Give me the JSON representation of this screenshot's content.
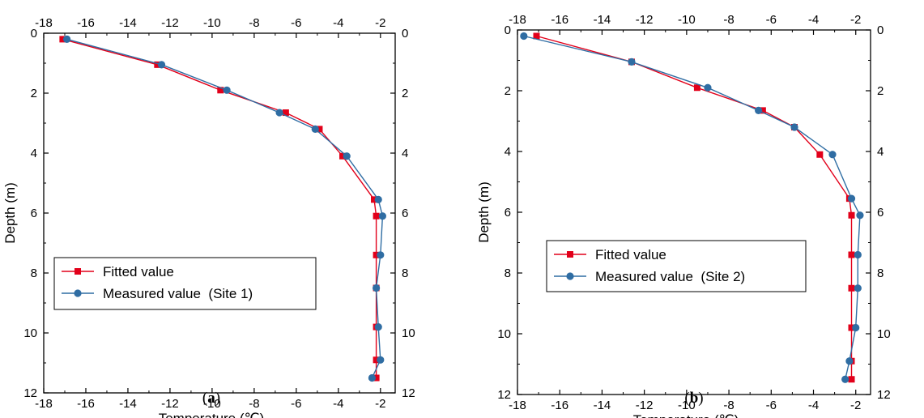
{
  "chart_data": [
    {
      "type": "line",
      "panel_label": {
        "open": "(",
        "letter": "a",
        "close": ")"
      },
      "xlabel": "Temperature (℃)",
      "ylabel": "Depth (m)",
      "xlim": [
        -18,
        -1.3
      ],
      "ylim": [
        0,
        12
      ],
      "y_inverted": true,
      "x_ticks": [
        -18,
        -16,
        -14,
        -12,
        -10,
        -8,
        -6,
        -4,
        -2
      ],
      "y_ticks": [
        0,
        2,
        4,
        6,
        8,
        10,
        12
      ],
      "mirror_axes": true,
      "legend_position": "bottom-left",
      "series": [
        {
          "name": "Fitted value",
          "marker": "square",
          "color": "#e2001a",
          "points": [
            {
              "x": -17.1,
              "y": 0.2
            },
            {
              "x": -12.6,
              "y": 1.05
            },
            {
              "x": -9.6,
              "y": 1.9
            },
            {
              "x": -6.5,
              "y": 2.65
            },
            {
              "x": -4.9,
              "y": 3.2
            },
            {
              "x": -3.8,
              "y": 4.1
            },
            {
              "x": -2.3,
              "y": 5.55
            },
            {
              "x": -2.2,
              "y": 6.1
            },
            {
              "x": -2.2,
              "y": 7.4
            },
            {
              "x": -2.2,
              "y": 8.5
            },
            {
              "x": -2.2,
              "y": 9.8
            },
            {
              "x": -2.2,
              "y": 10.9
            },
            {
              "x": -2.2,
              "y": 11.5
            }
          ]
        },
        {
          "name": "Measured value  (Site 1)",
          "marker": "circle",
          "color": "#2f6da3",
          "points": [
            {
              "x": -16.9,
              "y": 0.2
            },
            {
              "x": -12.4,
              "y": 1.05
            },
            {
              "x": -9.3,
              "y": 1.9
            },
            {
              "x": -6.8,
              "y": 2.65
            },
            {
              "x": -5.1,
              "y": 3.2
            },
            {
              "x": -3.6,
              "y": 4.1
            },
            {
              "x": -2.1,
              "y": 5.55
            },
            {
              "x": -1.9,
              "y": 6.1
            },
            {
              "x": -2.0,
              "y": 7.4
            },
            {
              "x": -2.2,
              "y": 8.5
            },
            {
              "x": -2.1,
              "y": 9.8
            },
            {
              "x": -2.0,
              "y": 10.9
            },
            {
              "x": -2.4,
              "y": 11.5
            }
          ]
        }
      ]
    },
    {
      "type": "line",
      "panel_label": {
        "open": "(",
        "letter": "b",
        "close": ")"
      },
      "xlabel": "Temperature (℃)",
      "ylabel": "Depth (m)",
      "xlim": [
        -18,
        -1.3
      ],
      "ylim": [
        0,
        12
      ],
      "y_inverted": true,
      "x_ticks": [
        -18,
        -16,
        -14,
        -12,
        -10,
        -8,
        -6,
        -4,
        -2
      ],
      "y_ticks": [
        0,
        2,
        4,
        6,
        8,
        10,
        12
      ],
      "mirror_axes": true,
      "legend_position": "bottom-left",
      "series": [
        {
          "name": "Fitted value",
          "marker": "square",
          "color": "#e2001a",
          "points": [
            {
              "x": -17.1,
              "y": 0.2
            },
            {
              "x": -12.6,
              "y": 1.05
            },
            {
              "x": -9.5,
              "y": 1.9
            },
            {
              "x": -6.4,
              "y": 2.65
            },
            {
              "x": -4.9,
              "y": 3.2
            },
            {
              "x": -3.7,
              "y": 4.1
            },
            {
              "x": -2.3,
              "y": 5.55
            },
            {
              "x": -2.2,
              "y": 6.1
            },
            {
              "x": -2.2,
              "y": 7.4
            },
            {
              "x": -2.2,
              "y": 8.5
            },
            {
              "x": -2.2,
              "y": 9.8
            },
            {
              "x": -2.2,
              "y": 10.9
            },
            {
              "x": -2.2,
              "y": 11.5
            }
          ]
        },
        {
          "name": "Measured value  (Site 2)",
          "marker": "circle",
          "color": "#2f6da3",
          "points": [
            {
              "x": -17.7,
              "y": 0.2
            },
            {
              "x": -12.6,
              "y": 1.05
            },
            {
              "x": -9.0,
              "y": 1.9
            },
            {
              "x": -6.6,
              "y": 2.65
            },
            {
              "x": -4.9,
              "y": 3.2
            },
            {
              "x": -3.1,
              "y": 4.1
            },
            {
              "x": -2.2,
              "y": 5.55
            },
            {
              "x": -1.8,
              "y": 6.1
            },
            {
              "x": -1.9,
              "y": 7.4
            },
            {
              "x": -1.9,
              "y": 8.5
            },
            {
              "x": -2.0,
              "y": 9.8
            },
            {
              "x": -2.3,
              "y": 10.9
            },
            {
              "x": -2.5,
              "y": 11.5
            }
          ]
        }
      ]
    }
  ]
}
